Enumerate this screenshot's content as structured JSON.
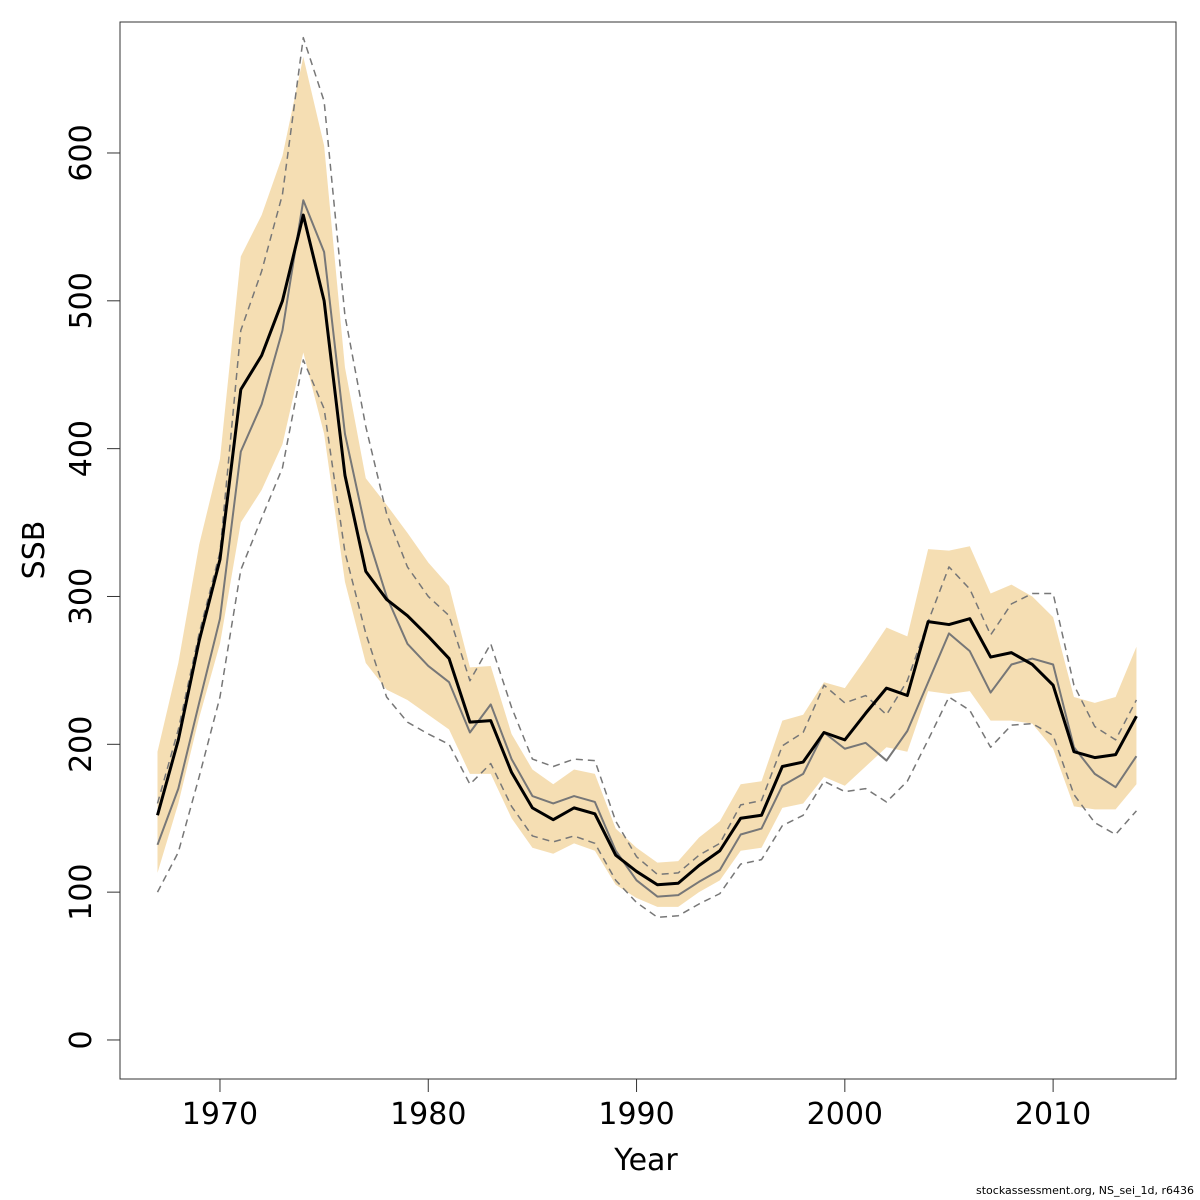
{
  "chart_data": {
    "type": "line",
    "x_label": "Year",
    "y_label": "SSB",
    "footnote": "stockassessment.org, NS_sei_1d, r6436",
    "xlim": [
      1965.2,
      2015.9
    ],
    "ylim": [
      -26.4,
      688.6
    ],
    "xticks": [
      1970,
      1980,
      1990,
      2000,
      2010
    ],
    "yticks": [
      0,
      100,
      200,
      300,
      400,
      500,
      600
    ],
    "x": [
      1967,
      1968,
      1969,
      1970,
      1971,
      1972,
      1973,
      1974,
      1975,
      1976,
      1977,
      1978,
      1979,
      1980,
      1981,
      1982,
      1983,
      1984,
      1985,
      1986,
      1987,
      1988,
      1989,
      1990,
      1991,
      1992,
      1993,
      1994,
      1995,
      1996,
      1997,
      1998,
      1999,
      2000,
      2001,
      2002,
      2003,
      2004,
      2005,
      2006,
      2007,
      2008,
      2009,
      2010,
      2011,
      2012,
      2013,
      2014
    ],
    "band": {
      "color": "#f5deb3",
      "lower": [
        113,
        160,
        218,
        268,
        350,
        372,
        403,
        465,
        410,
        310,
        255,
        237,
        230,
        220,
        210,
        180,
        180,
        150,
        130,
        126,
        133,
        128,
        105,
        96,
        90,
        90,
        100,
        108,
        128,
        130,
        157,
        160,
        178,
        172,
        185,
        198,
        195,
        236,
        234,
        236,
        216,
        216,
        214,
        197,
        158,
        156,
        156,
        173
      ],
      "upper": [
        195,
        255,
        335,
        393,
        530,
        558,
        598,
        665,
        605,
        455,
        380,
        362,
        343,
        323,
        307,
        252,
        253,
        207,
        183,
        173,
        183,
        180,
        143,
        130,
        120,
        121,
        137,
        148,
        173,
        175,
        216,
        220,
        242,
        238,
        258,
        279,
        273,
        332,
        331,
        334,
        302,
        308,
        300,
        286,
        232,
        228,
        232,
        266
      ]
    },
    "series": [
      {
        "color": "#777777",
        "width": 1.5,
        "dash": true,
        "values": [
          160,
          210,
          275,
          330,
          480,
          520,
          572,
          678,
          635,
          490,
          415,
          356,
          320,
          300,
          287,
          243,
          268,
          225,
          190,
          185,
          190,
          189,
          148,
          124,
          112,
          113,
          125,
          133,
          159,
          162,
          199,
          208,
          240,
          228,
          233,
          220,
          243,
          283,
          320,
          305,
          274,
          295,
          302,
          302,
          240,
          212,
          203,
          230
        ]
      },
      {
        "color": "#777777",
        "width": 1.5,
        "dash": true,
        "values": [
          100,
          127,
          178,
          232,
          318,
          353,
          387,
          460,
          427,
          330,
          275,
          232,
          215,
          207,
          200,
          173,
          187,
          158,
          138,
          134,
          138,
          133,
          108,
          93,
          83,
          84,
          92,
          99,
          119,
          122,
          145,
          152,
          175,
          168,
          170,
          161,
          175,
          203,
          232,
          223,
          198,
          213,
          214,
          206,
          166,
          147,
          139,
          155
        ]
      },
      {
        "color": "#777777",
        "width": 2,
        "dash": false,
        "values": [
          132,
          170,
          228,
          285,
          398,
          430,
          480,
          568,
          533,
          410,
          345,
          300,
          268,
          253,
          242,
          208,
          227,
          190,
          165,
          160,
          165,
          161,
          128,
          108,
          97,
          98,
          107,
          115,
          139,
          143,
          172,
          180,
          208,
          197,
          201,
          189,
          209,
          242,
          275,
          263,
          235,
          254,
          258,
          254,
          198,
          180,
          171,
          192
        ]
      },
      {
        "color": "#000000",
        "width": 3,
        "dash": false,
        "values": [
          152,
          203,
          270,
          325,
          440,
          463,
          500,
          558,
          500,
          382,
          317,
          298,
          287,
          273,
          258,
          215,
          216,
          181,
          157,
          149,
          157,
          153,
          125,
          114,
          105,
          106,
          118,
          128,
          150,
          152,
          185,
          188,
          208,
          203,
          221,
          238,
          233,
          283,
          281,
          285,
          259,
          262,
          254,
          240,
          195,
          191,
          193,
          219
        ]
      }
    ]
  }
}
